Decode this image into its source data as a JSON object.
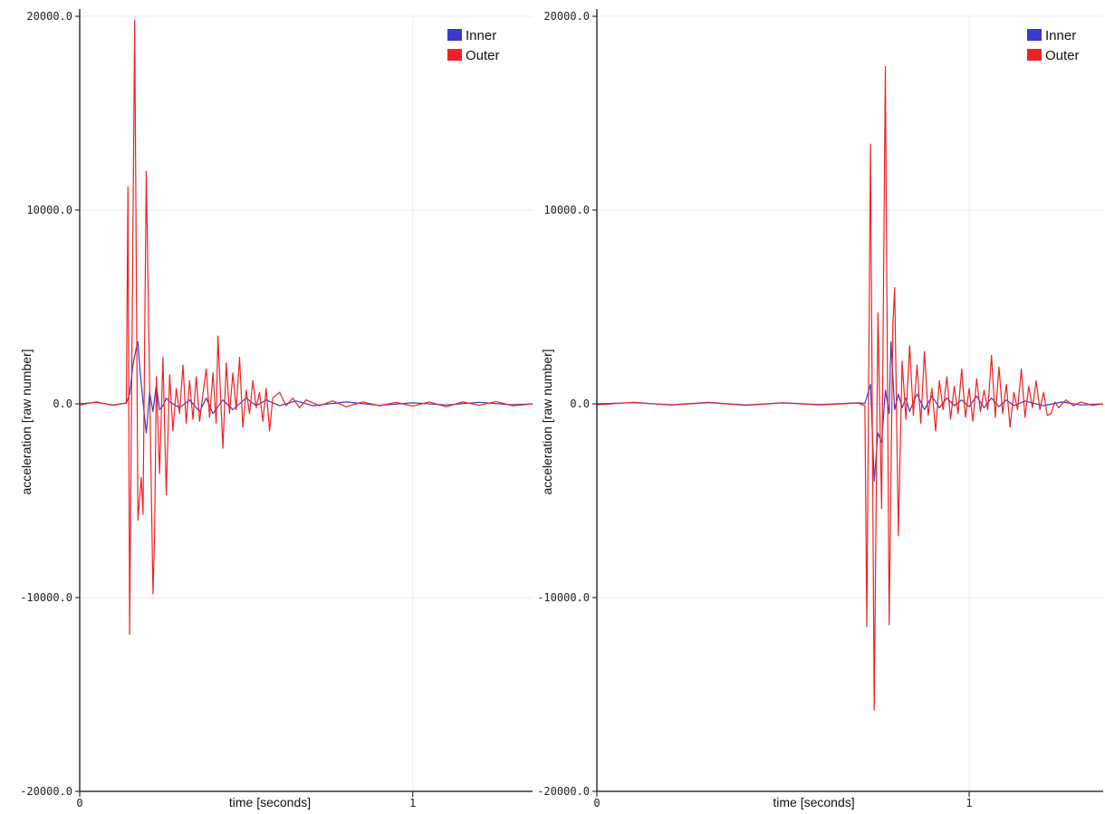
{
  "chart_data": [
    {
      "type": "line",
      "xlabel": "time [seconds]",
      "ylabel": "acceleration [raw number]",
      "xlim": [
        0,
        1.36
      ],
      "ylim": [
        -20000,
        20000
      ],
      "x_ticks": [
        {
          "value": 0,
          "label": "0"
        },
        {
          "value": 1,
          "label": "1"
        }
      ],
      "y_ticks": [
        {
          "value": 20000,
          "label": "20000.0"
        },
        {
          "value": 10000,
          "label": "10000.0"
        },
        {
          "value": 0,
          "label": "0.0"
        },
        {
          "value": -10000,
          "label": "-10000.0"
        },
        {
          "value": -20000,
          "label": "-20000.0"
        }
      ],
      "grid": true,
      "legend_position": "top-right",
      "series": [
        {
          "name": "Inner",
          "color": "#3a3acc",
          "points": [
            [
              0,
              0
            ],
            [
              0.05,
              80
            ],
            [
              0.1,
              -60
            ],
            [
              0.14,
              40
            ],
            [
              0.15,
              500
            ],
            [
              0.16,
              2000
            ],
            [
              0.17,
              2900
            ],
            [
              0.175,
              3200
            ],
            [
              0.18,
              1900
            ],
            [
              0.19,
              100
            ],
            [
              0.2,
              -1500
            ],
            [
              0.21,
              600
            ],
            [
              0.22,
              -400
            ],
            [
              0.23,
              1000
            ],
            [
              0.24,
              -300
            ],
            [
              0.25,
              -100
            ],
            [
              0.26,
              300
            ],
            [
              0.27,
              100
            ],
            [
              0.3,
              -200
            ],
            [
              0.33,
              200
            ],
            [
              0.36,
              -400
            ],
            [
              0.38,
              300
            ],
            [
              0.4,
              -500
            ],
            [
              0.43,
              200
            ],
            [
              0.46,
              -300
            ],
            [
              0.5,
              300
            ],
            [
              0.53,
              -100
            ],
            [
              0.56,
              200
            ],
            [
              0.6,
              -100
            ],
            [
              0.65,
              150
            ],
            [
              0.7,
              -100
            ],
            [
              0.8,
              100
            ],
            [
              0.9,
              -80
            ],
            [
              1.0,
              50
            ],
            [
              1.1,
              -60
            ],
            [
              1.2,
              80
            ],
            [
              1.3,
              -50
            ],
            [
              1.36,
              0
            ]
          ]
        },
        {
          "name": "Outer",
          "color": "#ee2222",
          "points": [
            [
              0,
              -50
            ],
            [
              0.05,
              100
            ],
            [
              0.1,
              -80
            ],
            [
              0.14,
              50
            ],
            [
              0.145,
              11200
            ],
            [
              0.15,
              -11900
            ],
            [
              0.165,
              19800
            ],
            [
              0.175,
              -6000
            ],
            [
              0.185,
              -3800
            ],
            [
              0.19,
              -5700
            ],
            [
              0.2,
              12000
            ],
            [
              0.21,
              1000
            ],
            [
              0.22,
              -9800
            ],
            [
              0.225,
              -6800
            ],
            [
              0.23,
              1400
            ],
            [
              0.24,
              -3600
            ],
            [
              0.25,
              2400
            ],
            [
              0.26,
              -4700
            ],
            [
              0.27,
              1500
            ],
            [
              0.28,
              -1400
            ],
            [
              0.29,
              800
            ],
            [
              0.3,
              -500
            ],
            [
              0.31,
              2000
            ],
            [
              0.32,
              -1000
            ],
            [
              0.33,
              1200
            ],
            [
              0.34,
              -800
            ],
            [
              0.35,
              1400
            ],
            [
              0.36,
              -900
            ],
            [
              0.37,
              500
            ],
            [
              0.38,
              1800
            ],
            [
              0.39,
              -700
            ],
            [
              0.4,
              1600
            ],
            [
              0.41,
              -1000
            ],
            [
              0.415,
              3500
            ],
            [
              0.43,
              -2300
            ],
            [
              0.44,
              2100
            ],
            [
              0.45,
              -500
            ],
            [
              0.46,
              1600
            ],
            [
              0.47,
              -300
            ],
            [
              0.48,
              2400
            ],
            [
              0.49,
              -1200
            ],
            [
              0.5,
              700
            ],
            [
              0.51,
              -500
            ],
            [
              0.52,
              1200
            ],
            [
              0.53,
              -200
            ],
            [
              0.54,
              600
            ],
            [
              0.55,
              -900
            ],
            [
              0.56,
              800
            ],
            [
              0.57,
              -1400
            ],
            [
              0.58,
              300
            ],
            [
              0.6,
              600
            ],
            [
              0.62,
              -100
            ],
            [
              0.64,
              300
            ],
            [
              0.66,
              -200
            ],
            [
              0.68,
              200
            ],
            [
              0.72,
              -100
            ],
            [
              0.76,
              150
            ],
            [
              0.8,
              -150
            ],
            [
              0.85,
              100
            ],
            [
              0.9,
              -100
            ],
            [
              0.95,
              80
            ],
            [
              1.0,
              -120
            ],
            [
              1.05,
              100
            ],
            [
              1.1,
              -150
            ],
            [
              1.15,
              100
            ],
            [
              1.2,
              -80
            ],
            [
              1.25,
              120
            ],
            [
              1.3,
              -100
            ],
            [
              1.36,
              0
            ]
          ]
        }
      ]
    },
    {
      "type": "line",
      "xlabel": "time [seconds]",
      "ylabel": "acceleration [raw number]",
      "xlim": [
        0,
        1.36
      ],
      "ylim": [
        -20000,
        20000
      ],
      "x_ticks": [
        {
          "value": 0,
          "label": "0"
        },
        {
          "value": 1,
          "label": "1"
        }
      ],
      "y_ticks": [
        {
          "value": 20000,
          "label": "20000.0"
        },
        {
          "value": 10000,
          "label": "10000.0"
        },
        {
          "value": 0,
          "label": "0.0"
        },
        {
          "value": -10000,
          "label": "-10000.0"
        },
        {
          "value": -20000,
          "label": "-20000.0"
        }
      ],
      "grid": true,
      "legend_position": "top-right",
      "series": [
        {
          "name": "Inner",
          "color": "#3a3acc",
          "points": [
            [
              0,
              0
            ],
            [
              0.1,
              60
            ],
            [
              0.2,
              -50
            ],
            [
              0.3,
              80
            ],
            [
              0.4,
              -60
            ],
            [
              0.5,
              50
            ],
            [
              0.6,
              -40
            ],
            [
              0.7,
              50
            ],
            [
              0.72,
              20
            ],
            [
              0.735,
              1000
            ],
            [
              0.745,
              -4000
            ],
            [
              0.755,
              -1500
            ],
            [
              0.765,
              -2000
            ],
            [
              0.775,
              700
            ],
            [
              0.785,
              -500
            ],
            [
              0.79,
              3200
            ],
            [
              0.8,
              -300
            ],
            [
              0.81,
              500
            ],
            [
              0.82,
              -200
            ],
            [
              0.83,
              300
            ],
            [
              0.84,
              -400
            ],
            [
              0.85,
              100
            ],
            [
              0.86,
              500
            ],
            [
              0.88,
              -300
            ],
            [
              0.9,
              400
            ],
            [
              0.92,
              -200
            ],
            [
              0.94,
              300
            ],
            [
              0.96,
              -100
            ],
            [
              0.98,
              200
            ],
            [
              1.0,
              -150
            ],
            [
              1.02,
              400
            ],
            [
              1.04,
              -200
            ],
            [
              1.06,
              300
            ],
            [
              1.08,
              -150
            ],
            [
              1.1,
              200
            ],
            [
              1.12,
              -100
            ],
            [
              1.15,
              150
            ],
            [
              1.2,
              -100
            ],
            [
              1.25,
              100
            ],
            [
              1.3,
              -60
            ],
            [
              1.36,
              0
            ]
          ]
        },
        {
          "name": "Outer",
          "color": "#ee2222",
          "points": [
            [
              0,
              -50
            ],
            [
              0.1,
              80
            ],
            [
              0.2,
              -60
            ],
            [
              0.3,
              60
            ],
            [
              0.4,
              -80
            ],
            [
              0.5,
              50
            ],
            [
              0.6,
              -60
            ],
            [
              0.7,
              40
            ],
            [
              0.72,
              -100
            ],
            [
              0.725,
              -11500
            ],
            [
              0.735,
              13400
            ],
            [
              0.745,
              -15800
            ],
            [
              0.755,
              4700
            ],
            [
              0.765,
              -5400
            ],
            [
              0.775,
              17400
            ],
            [
              0.785,
              -11400
            ],
            [
              0.795,
              4100
            ],
            [
              0.8,
              6000
            ],
            [
              0.81,
              -6800
            ],
            [
              0.82,
              2200
            ],
            [
              0.83,
              -800
            ],
            [
              0.84,
              3000
            ],
            [
              0.85,
              -600
            ],
            [
              0.86,
              2000
            ],
            [
              0.87,
              -1000
            ],
            [
              0.88,
              2700
            ],
            [
              0.89,
              -600
            ],
            [
              0.9,
              800
            ],
            [
              0.91,
              -1400
            ],
            [
              0.92,
              1200
            ],
            [
              0.93,
              -300
            ],
            [
              0.94,
              1400
            ],
            [
              0.95,
              -800
            ],
            [
              0.96,
              900
            ],
            [
              0.97,
              -500
            ],
            [
              0.98,
              1800
            ],
            [
              0.99,
              -700
            ],
            [
              1.0,
              800
            ],
            [
              1.01,
              -900
            ],
            [
              1.02,
              1300
            ],
            [
              1.03,
              -400
            ],
            [
              1.04,
              700
            ],
            [
              1.05,
              -300
            ],
            [
              1.06,
              2500
            ],
            [
              1.07,
              -700
            ],
            [
              1.08,
              1900
            ],
            [
              1.09,
              -500
            ],
            [
              1.1,
              1000
            ],
            [
              1.11,
              -1200
            ],
            [
              1.12,
              600
            ],
            [
              1.13,
              -300
            ],
            [
              1.14,
              1800
            ],
            [
              1.15,
              -700
            ],
            [
              1.16,
              900
            ],
            [
              1.17,
              -200
            ],
            [
              1.18,
              1200
            ],
            [
              1.19,
              -300
            ],
            [
              1.2,
              600
            ],
            [
              1.21,
              -600
            ],
            [
              1.22,
              -500
            ],
            [
              1.23,
              100
            ],
            [
              1.24,
              -200
            ],
            [
              1.26,
              200
            ],
            [
              1.28,
              -100
            ],
            [
              1.3,
              100
            ],
            [
              1.33,
              -80
            ],
            [
              1.36,
              0
            ]
          ]
        }
      ]
    }
  ]
}
